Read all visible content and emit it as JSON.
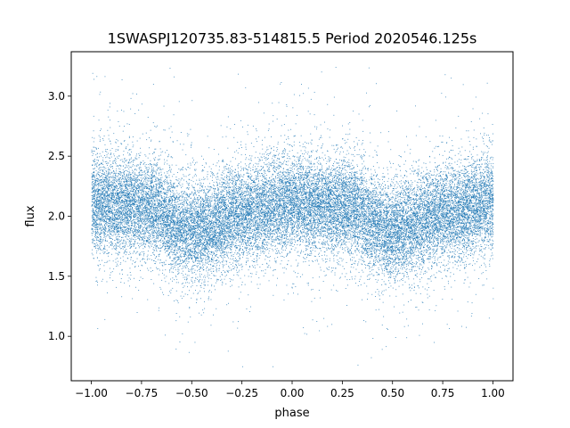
{
  "chart_data": {
    "type": "scatter",
    "title": "1SWASPJ120735.83-514815.5 Period 2020546.125s",
    "xlabel": "phase",
    "ylabel": "flux",
    "xlim": [
      -1.1,
      1.1
    ],
    "ylim": [
      0.63,
      3.37
    ],
    "xticks": [
      -1.0,
      -0.75,
      -0.5,
      -0.25,
      0.0,
      0.25,
      0.5,
      0.75,
      1.0
    ],
    "xtick_labels": [
      "−1.00",
      "−0.75",
      "−0.50",
      "−0.25",
      "0.00",
      "0.25",
      "0.50",
      "0.75",
      "1.00"
    ],
    "yticks": [
      1.0,
      1.5,
      2.0,
      2.5,
      3.0
    ],
    "ytick_labels": [
      "1.0",
      "1.5",
      "2.0",
      "2.5",
      "3.0"
    ],
    "grid": false,
    "marker_color": "#1f77b4",
    "n_points": 26000,
    "profile": [
      {
        "phase": -1.0,
        "flux": 2.12
      },
      {
        "phase": -0.75,
        "flux": 2.08
      },
      {
        "phase": -0.5,
        "flux": 1.88
      },
      {
        "phase": -0.25,
        "flux": 2.02
      },
      {
        "phase": 0.0,
        "flux": 2.12
      },
      {
        "phase": 0.25,
        "flux": 2.08
      },
      {
        "phase": 0.5,
        "flux": 1.88
      },
      {
        "phase": 0.75,
        "flux": 2.02
      },
      {
        "phase": 1.0,
        "flux": 2.12
      }
    ],
    "scatter_sd": 0.2,
    "flux_min": 0.75,
    "flux_max": 3.25
  }
}
